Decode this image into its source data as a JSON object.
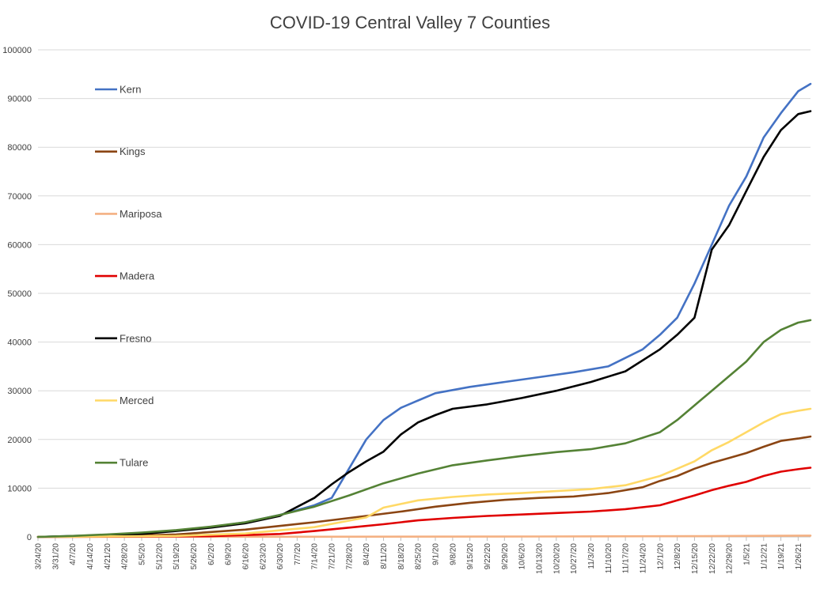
{
  "chart_data": {
    "type": "line",
    "title": "COVID-19 Central Valley 7 Counties",
    "xlabel": "",
    "ylabel": "",
    "ylim": [
      0,
      100000
    ],
    "yticks": [
      0,
      10000,
      20000,
      30000,
      40000,
      50000,
      60000,
      70000,
      80000,
      90000,
      100000
    ],
    "grid": true,
    "legend_position": "left-inside",
    "x_ticks": [
      "3/24/20",
      "3/31/20",
      "4/7/20",
      "4/14/20",
      "4/21/20",
      "4/28/20",
      "5/5/20",
      "5/12/20",
      "5/19/20",
      "5/26/20",
      "6/2/20",
      "6/9/20",
      "6/16/20",
      "6/23/20",
      "6/30/20",
      "7/7/20",
      "7/14/20",
      "7/21/20",
      "7/28/20",
      "8/4/20",
      "8/11/20",
      "8/18/20",
      "8/25/20",
      "9/1/20",
      "9/8/20",
      "9/15/20",
      "9/22/20",
      "9/29/20",
      "10/6/20",
      "10/13/20",
      "10/20/20",
      "10/27/20",
      "11/3/20",
      "11/10/20",
      "11/17/20",
      "11/24/20",
      "12/1/20",
      "12/8/20",
      "12/15/20",
      "12/22/20",
      "12/29/20",
      "1/5/21",
      "1/12/21",
      "1/19/21",
      "1/26/21"
    ],
    "x_start": "3/24/20",
    "x_end": "1/31/21",
    "series": [
      {
        "name": "Kern",
        "color": "#4472C4",
        "points": [
          [
            "3/24/20",
            0
          ],
          [
            "4/7/20",
            200
          ],
          [
            "4/21/20",
            400
          ],
          [
            "5/5/20",
            800
          ],
          [
            "5/19/20",
            1300
          ],
          [
            "6/2/20",
            2000
          ],
          [
            "6/16/20",
            3000
          ],
          [
            "6/30/20",
            4500
          ],
          [
            "7/14/20",
            6500
          ],
          [
            "7/21/20",
            8000
          ],
          [
            "7/28/20",
            14000
          ],
          [
            "8/4/20",
            20000
          ],
          [
            "8/11/20",
            24000
          ],
          [
            "8/18/20",
            26500
          ],
          [
            "8/25/20",
            28000
          ],
          [
            "9/1/20",
            29500
          ],
          [
            "9/15/20",
            30800
          ],
          [
            "9/29/20",
            31800
          ],
          [
            "10/13/20",
            32800
          ],
          [
            "10/27/20",
            33800
          ],
          [
            "11/10/20",
            35000
          ],
          [
            "11/24/20",
            38500
          ],
          [
            "12/1/20",
            41500
          ],
          [
            "12/8/20",
            45000
          ],
          [
            "12/15/20",
            52000
          ],
          [
            "12/22/20",
            60000
          ],
          [
            "12/29/20",
            68000
          ],
          [
            "1/5/21",
            74000
          ],
          [
            "1/12/21",
            82000
          ],
          [
            "1/19/21",
            87000
          ],
          [
            "1/26/21",
            91500
          ],
          [
            "1/31/21",
            93000
          ]
        ]
      },
      {
        "name": "Kings",
        "color": "#8B4513",
        "points": [
          [
            "3/24/20",
            0
          ],
          [
            "4/21/20",
            100
          ],
          [
            "5/19/20",
            500
          ],
          [
            "6/16/20",
            1500
          ],
          [
            "7/14/20",
            3000
          ],
          [
            "8/4/20",
            4300
          ],
          [
            "8/18/20",
            5200
          ],
          [
            "9/1/20",
            6200
          ],
          [
            "9/15/20",
            7000
          ],
          [
            "9/29/20",
            7600
          ],
          [
            "10/13/20",
            8000
          ],
          [
            "10/27/20",
            8300
          ],
          [
            "11/10/20",
            9000
          ],
          [
            "11/24/20",
            10200
          ],
          [
            "12/1/20",
            11500
          ],
          [
            "12/8/20",
            12500
          ],
          [
            "12/15/20",
            14000
          ],
          [
            "12/22/20",
            15200
          ],
          [
            "12/29/20",
            16200
          ],
          [
            "1/5/21",
            17200
          ],
          [
            "1/12/21",
            18500
          ],
          [
            "1/19/21",
            19700
          ],
          [
            "1/26/21",
            20200
          ],
          [
            "1/31/21",
            20600
          ]
        ]
      },
      {
        "name": "Mariposa",
        "color": "#F4B183",
        "points": [
          [
            "3/24/20",
            0
          ],
          [
            "7/14/20",
            40
          ],
          [
            "10/13/20",
            80
          ],
          [
            "12/15/20",
            150
          ],
          [
            "1/31/21",
            260
          ]
        ]
      },
      {
        "name": "Madera",
        "color": "#E00000",
        "points": [
          [
            "3/24/20",
            0
          ],
          [
            "6/2/20",
            150
          ],
          [
            "6/30/20",
            600
          ],
          [
            "7/14/20",
            1200
          ],
          [
            "7/28/20",
            1900
          ],
          [
            "8/11/20",
            2600
          ],
          [
            "8/25/20",
            3400
          ],
          [
            "9/8/20",
            3900
          ],
          [
            "9/22/20",
            4300
          ],
          [
            "10/6/20",
            4600
          ],
          [
            "10/20/20",
            4900
          ],
          [
            "11/3/20",
            5200
          ],
          [
            "11/17/20",
            5700
          ],
          [
            "12/1/20",
            6500
          ],
          [
            "12/8/20",
            7500
          ],
          [
            "12/15/20",
            8500
          ],
          [
            "12/22/20",
            9600
          ],
          [
            "12/29/20",
            10500
          ],
          [
            "1/5/21",
            11300
          ],
          [
            "1/12/21",
            12500
          ],
          [
            "1/19/21",
            13400
          ],
          [
            "1/26/21",
            13900
          ],
          [
            "1/31/21",
            14200
          ]
        ]
      },
      {
        "name": "Fresno",
        "color": "#000000",
        "points": [
          [
            "3/24/20",
            0
          ],
          [
            "4/7/20",
            150
          ],
          [
            "4/21/20",
            300
          ],
          [
            "5/5/20",
            600
          ],
          [
            "5/19/20",
            1200
          ],
          [
            "6/2/20",
            1900
          ],
          [
            "6/16/20",
            2800
          ],
          [
            "6/30/20",
            4300
          ],
          [
            "7/14/20",
            8000
          ],
          [
            "7/21/20",
            10800
          ],
          [
            "7/28/20",
            13300
          ],
          [
            "8/4/20",
            15500
          ],
          [
            "8/11/20",
            17500
          ],
          [
            "8/18/20",
            21000
          ],
          [
            "8/25/20",
            23500
          ],
          [
            "9/1/20",
            25000
          ],
          [
            "9/8/20",
            26300
          ],
          [
            "9/22/20",
            27200
          ],
          [
            "10/6/20",
            28500
          ],
          [
            "10/20/20",
            30000
          ],
          [
            "11/3/20",
            31800
          ],
          [
            "11/17/20",
            34000
          ],
          [
            "12/1/20",
            38500
          ],
          [
            "12/8/20",
            41500
          ],
          [
            "12/15/20",
            45000
          ],
          [
            "12/22/20",
            59000
          ],
          [
            "12/29/20",
            64000
          ],
          [
            "1/5/21",
            71000
          ],
          [
            "1/12/21",
            78000
          ],
          [
            "1/19/21",
            83500
          ],
          [
            "1/26/21",
            86800
          ],
          [
            "1/31/21",
            87400
          ]
        ]
      },
      {
        "name": "Merced",
        "color": "#FFD966",
        "points": [
          [
            "3/24/20",
            0
          ],
          [
            "5/19/20",
            200
          ],
          [
            "6/16/20",
            700
          ],
          [
            "7/14/20",
            2000
          ],
          [
            "8/4/20",
            4000
          ],
          [
            "8/11/20",
            6000
          ],
          [
            "8/25/20",
            7500
          ],
          [
            "9/8/20",
            8200
          ],
          [
            "9/22/20",
            8700
          ],
          [
            "10/6/20",
            9000
          ],
          [
            "10/20/20",
            9400
          ],
          [
            "11/3/20",
            9800
          ],
          [
            "11/17/20",
            10600
          ],
          [
            "12/1/20",
            12500
          ],
          [
            "12/8/20",
            14000
          ],
          [
            "12/15/20",
            15500
          ],
          [
            "12/22/20",
            17800
          ],
          [
            "12/29/20",
            19500
          ],
          [
            "1/5/21",
            21500
          ],
          [
            "1/12/21",
            23500
          ],
          [
            "1/19/21",
            25200
          ],
          [
            "1/26/21",
            25900
          ],
          [
            "1/31/21",
            26300
          ]
        ]
      },
      {
        "name": "Tulare",
        "color": "#548235",
        "points": [
          [
            "3/24/20",
            0
          ],
          [
            "4/7/20",
            200
          ],
          [
            "4/21/20",
            500
          ],
          [
            "5/5/20",
            900
          ],
          [
            "5/19/20",
            1400
          ],
          [
            "6/2/20",
            2100
          ],
          [
            "6/16/20",
            3000
          ],
          [
            "6/30/20",
            4500
          ],
          [
            "7/14/20",
            6200
          ],
          [
            "7/28/20",
            8500
          ],
          [
            "8/11/20",
            11000
          ],
          [
            "8/25/20",
            13000
          ],
          [
            "9/8/20",
            14700
          ],
          [
            "9/22/20",
            15700
          ],
          [
            "10/6/20",
            16600
          ],
          [
            "10/20/20",
            17400
          ],
          [
            "11/3/20",
            18000
          ],
          [
            "11/17/20",
            19200
          ],
          [
            "12/1/20",
            21500
          ],
          [
            "12/8/20",
            24000
          ],
          [
            "12/15/20",
            27000
          ],
          [
            "12/22/20",
            30000
          ],
          [
            "12/29/20",
            33000
          ],
          [
            "1/5/21",
            36000
          ],
          [
            "1/12/21",
            40000
          ],
          [
            "1/19/21",
            42500
          ],
          [
            "1/26/21",
            44000
          ],
          [
            "1/31/21",
            44500
          ]
        ]
      }
    ]
  }
}
